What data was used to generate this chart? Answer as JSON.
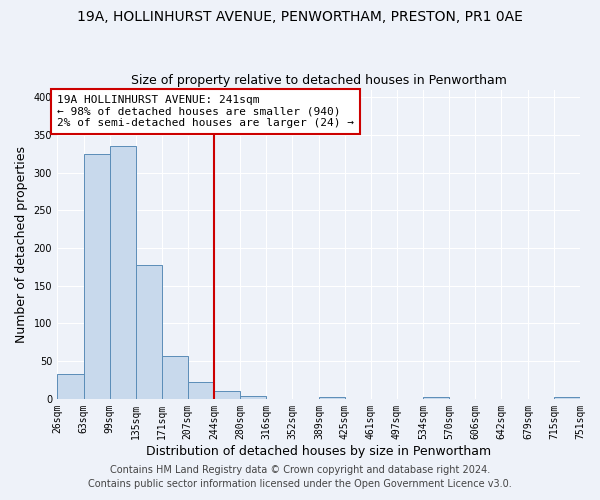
{
  "title_line1": "19A, HOLLINHURST AVENUE, PENWORTHAM, PRESTON, PR1 0AE",
  "title_line2": "Size of property relative to detached houses in Penwortham",
  "xlabel": "Distribution of detached houses by size in Penwortham",
  "ylabel": "Number of detached properties",
  "bin_edges": [
    26,
    63,
    99,
    135,
    171,
    207,
    244,
    280,
    316,
    352,
    389,
    425,
    461,
    497,
    534,
    570,
    606,
    642,
    679,
    715,
    751
  ],
  "bin_heights": [
    33,
    325,
    335,
    178,
    57,
    22,
    11,
    4,
    0,
    0,
    3,
    0,
    0,
    0,
    2,
    0,
    0,
    0,
    0,
    3
  ],
  "bar_color": "#c8d9ec",
  "bar_edge_color": "#5b8db8",
  "vline_x": 244,
  "vline_color": "#cc0000",
  "annotation_line1": "19A HOLLINHURST AVENUE: 241sqm",
  "annotation_line2": "← 98% of detached houses are smaller (940)",
  "annotation_line3": "2% of semi-detached houses are larger (24) →",
  "annotation_box_color": "#ffffff",
  "annotation_box_edge_color": "#cc0000",
  "ylim": [
    0,
    410
  ],
  "yticks": [
    0,
    50,
    100,
    150,
    200,
    250,
    300,
    350,
    400
  ],
  "tick_labels": [
    "26sqm",
    "63sqm",
    "99sqm",
    "135sqm",
    "171sqm",
    "207sqm",
    "244sqm",
    "280sqm",
    "316sqm",
    "352sqm",
    "389sqm",
    "425sqm",
    "461sqm",
    "497sqm",
    "534sqm",
    "570sqm",
    "606sqm",
    "642sqm",
    "679sqm",
    "715sqm",
    "751sqm"
  ],
  "footer_line1": "Contains HM Land Registry data © Crown copyright and database right 2024.",
  "footer_line2": "Contains public sector information licensed under the Open Government Licence v3.0.",
  "background_color": "#eef2f9",
  "grid_color": "#ffffff",
  "title_fontsize": 10,
  "subtitle_fontsize": 9,
  "axis_label_fontsize": 9,
  "tick_fontsize": 7,
  "annotation_fontsize": 8,
  "footer_fontsize": 7
}
